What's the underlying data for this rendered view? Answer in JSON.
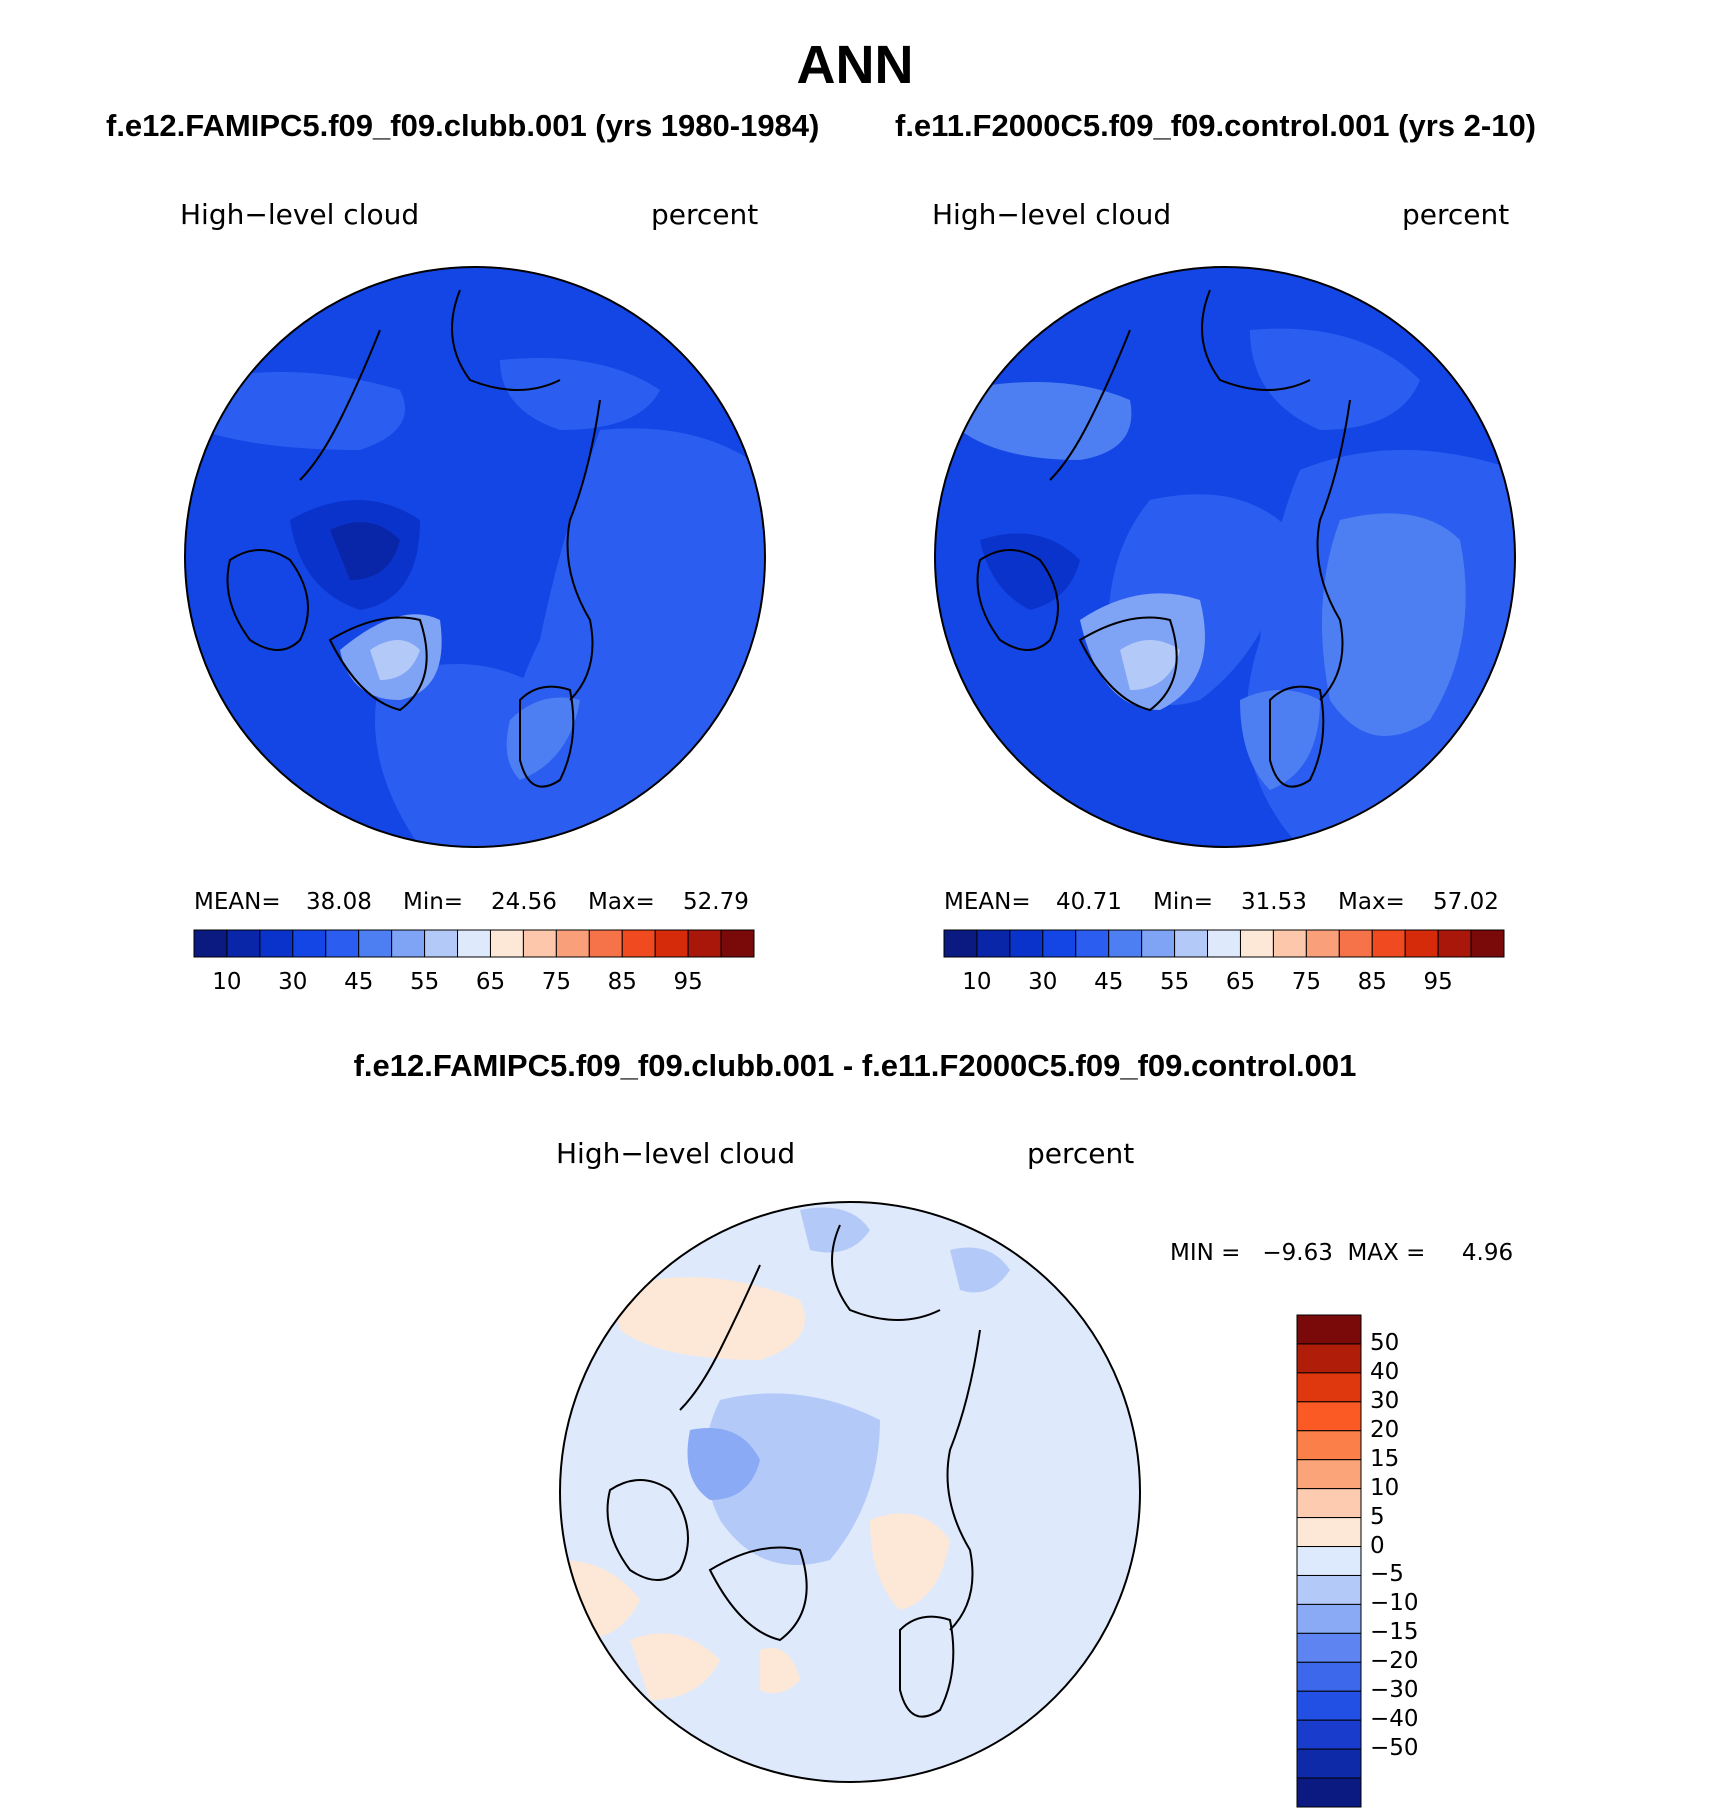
{
  "title": "ANN",
  "panels": [
    {
      "case": "f.e12.FAMIPC5.f09_f09.clubb.001 (yrs 1980-1984)",
      "variable": "High−level cloud",
      "units": "percent",
      "mean_label": "MEAN=",
      "mean": "38.08",
      "min_label": "Min=",
      "min": "24.56",
      "max_label": "Max=",
      "max": "52.79"
    },
    {
      "case": "f.e11.F2000C5.f09_f09.control.001 (yrs 2-10)",
      "variable": "High−level cloud",
      "units": "percent",
      "mean_label": "MEAN=",
      "mean": "40.71",
      "min_label": "Min=",
      "min": "31.53",
      "max_label": "Max=",
      "max": "57.02"
    }
  ],
  "difference": {
    "title": "f.e12.FAMIPC5.f09_f09.clubb.001 - f.e11.F2000C5.f09_f09.control.001",
    "variable": "High−level cloud",
    "units": "percent",
    "minmax_text": "MIN =   −9.63  MAX =     4.96"
  },
  "colorbar_abs": {
    "colors": [
      "#0a1a80",
      "#0a26a8",
      "#0a33cc",
      "#1446e6",
      "#2b5ef0",
      "#4d7ff2",
      "#7fa3f5",
      "#b3c9f8",
      "#dfe9fc",
      "#fde8d8",
      "#fcc7aa",
      "#f9a07a",
      "#f6734a",
      "#f04a20",
      "#d62b0a",
      "#a8170a",
      "#7a0a0a"
    ],
    "ticks": [
      "10",
      "30",
      "45",
      "55",
      "65",
      "75",
      "85",
      "95"
    ]
  },
  "colorbar_diff": {
    "colors": [
      "#7a0a0a",
      "#b01e0a",
      "#e0380e",
      "#fb5a24",
      "#fb7f48",
      "#fba47a",
      "#fdcbb0",
      "#fde8d8",
      "#dde9fc",
      "#b3c9f8",
      "#8aaaf5",
      "#5d84f0",
      "#3d68eb",
      "#2350e4",
      "#1a3ccc",
      "#0f2aa8",
      "#0a1a80"
    ],
    "ticks": [
      "50",
      "40",
      "30",
      "20",
      "15",
      "10",
      "5",
      "0",
      "−5",
      "−10",
      "−15",
      "−20",
      "−30",
      "−40",
      "−50"
    ]
  }
}
